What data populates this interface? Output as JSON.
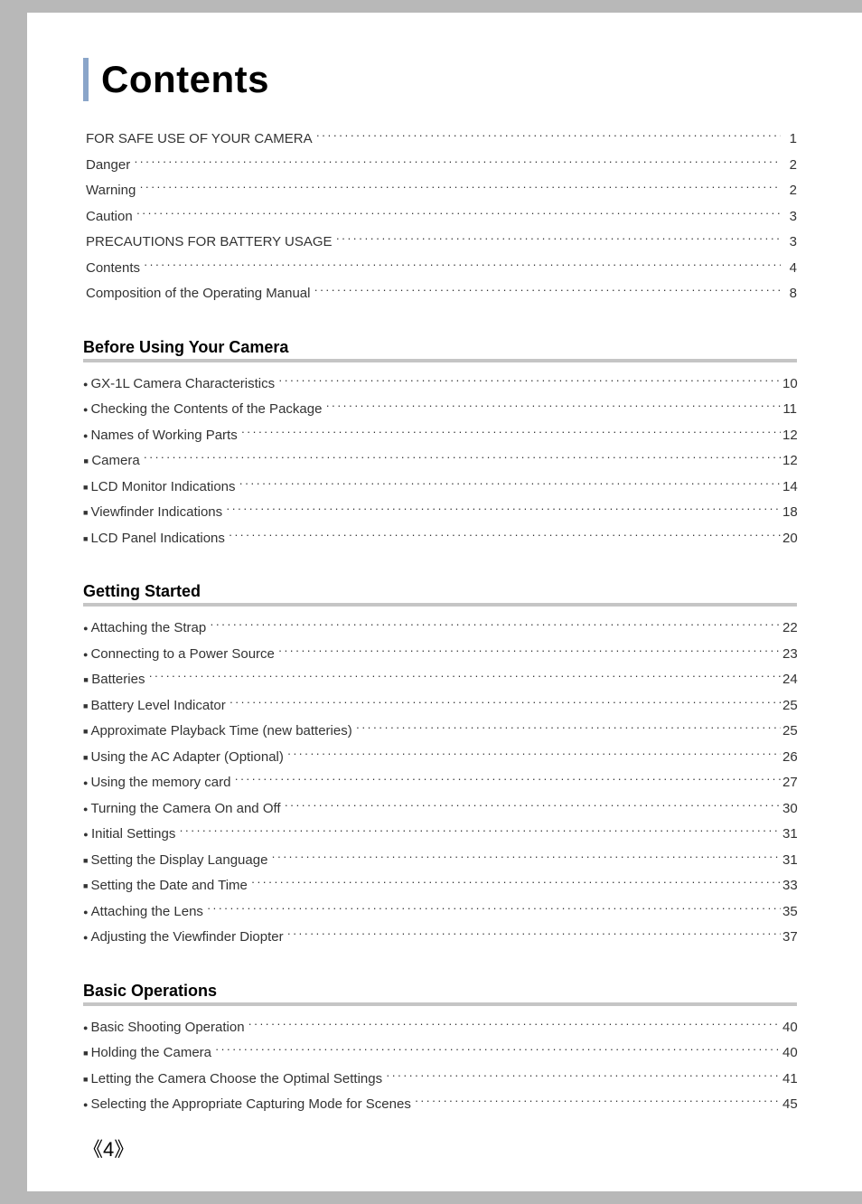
{
  "title": "Contents",
  "colors": {
    "page_bg": "#ffffff",
    "outer_bg": "#b8b8b8",
    "accent_bar": "#8aa5c9",
    "section_rule": "#c5c5c5",
    "text": "#333333",
    "heading": "#000000"
  },
  "typography": {
    "title_fontsize_pt": 32,
    "heading_fontsize_pt": 14,
    "body_fontsize_pt": 11,
    "footer_fontsize_pt": 16,
    "font_family": "Arial"
  },
  "front_matter": [
    {
      "label": "FOR SAFE USE OF YOUR CAMERA",
      "page": "1",
      "bullet": ""
    },
    {
      "label": "Danger",
      "page": "2",
      "bullet": ""
    },
    {
      "label": "Warning",
      "page": "2",
      "bullet": ""
    },
    {
      "label": "Caution",
      "page": "3",
      "bullet": ""
    },
    {
      "label": "PRECAUTIONS FOR BATTERY USAGE",
      "page": "3",
      "bullet": ""
    },
    {
      "label": "Contents",
      "page": "4",
      "bullet": ""
    },
    {
      "label": "Composition of the Operating Manual",
      "page": "8",
      "bullet": ""
    }
  ],
  "sections": [
    {
      "heading": "Before Using Your Camera",
      "items": [
        {
          "label": "GX-1L Camera Characteristics",
          "page": "10",
          "bullet": "circle"
        },
        {
          "label": "Checking the Contents of the Package",
          "page": "11",
          "bullet": "circle"
        },
        {
          "label": "Names of Working Parts",
          "page": "12",
          "bullet": "circle"
        },
        {
          "label": "Camera",
          "page": "12",
          "bullet": "square"
        },
        {
          "label": "LCD Monitor Indications",
          "page": "14",
          "bullet": "square"
        },
        {
          "label": "Viewfinder Indications",
          "page": "18",
          "bullet": "square"
        },
        {
          "label": "LCD Panel Indications",
          "page": "20",
          "bullet": "square"
        }
      ]
    },
    {
      "heading": "Getting Started",
      "items": [
        {
          "label": "Attaching the Strap",
          "page": "22",
          "bullet": "circle"
        },
        {
          "label": "Connecting to a Power Source",
          "page": "23",
          "bullet": "circle"
        },
        {
          "label": "Batteries",
          "page": "24",
          "bullet": "square"
        },
        {
          "label": "Battery Level Indicator",
          "page": "25",
          "bullet": "square"
        },
        {
          "label": "Approximate Playback Time (new batteries)",
          "page": "25",
          "bullet": "square"
        },
        {
          "label": "Using the AC Adapter (Optional)",
          "page": "26",
          "bullet": "square"
        },
        {
          "label": "Using the memory card",
          "page": "27",
          "bullet": "circle"
        },
        {
          "label": "Turning the Camera On and Off",
          "page": "30",
          "bullet": "circle"
        },
        {
          "label": "Initial Settings",
          "page": "31",
          "bullet": "circle"
        },
        {
          "label": "Setting the Display Language",
          "page": "31",
          "bullet": "square"
        },
        {
          "label": "Setting the Date and Time",
          "page": "33",
          "bullet": "square"
        },
        {
          "label": "Attaching the Lens",
          "page": "35",
          "bullet": "circle"
        },
        {
          "label": "Adjusting the Viewfinder Diopter",
          "page": "37",
          "bullet": "circle"
        }
      ]
    },
    {
      "heading": "Basic Operations",
      "items": [
        {
          "label": "Basic Shooting Operation",
          "page": "40",
          "bullet": "circle"
        },
        {
          "label": "Holding the Camera",
          "page": "40",
          "bullet": "square"
        },
        {
          "label": "Letting the Camera Choose the Optimal Settings",
          "page": "41",
          "bullet": "square"
        },
        {
          "label": "Selecting the Appropriate Capturing Mode for Scenes",
          "page": "45",
          "bullet": "circle"
        }
      ]
    }
  ],
  "footer": {
    "left_angle": "《",
    "page_number": "4",
    "right_angle": "》"
  }
}
